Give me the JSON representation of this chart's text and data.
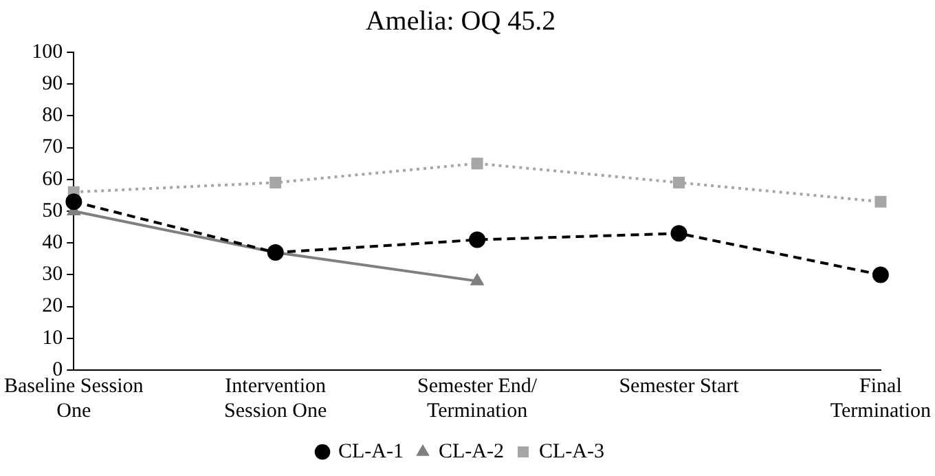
{
  "chart_data": {
    "type": "line",
    "title": "Amelia: OQ 45.2",
    "categories": [
      "Baseline Session One",
      "Intervention Session One",
      "Semester End/ Termination",
      "Semester Start",
      "Final Termination"
    ],
    "series": [
      {
        "name": "CL-A-1",
        "color": "#000000",
        "values": [
          53,
          37,
          41,
          43,
          30
        ],
        "marker": "circle",
        "line_style": "dashed"
      },
      {
        "name": "CL-A-2",
        "color": "#7f7f7f",
        "values": [
          50,
          37,
          28,
          null,
          null
        ],
        "marker": "triangle",
        "line_style": "solid"
      },
      {
        "name": "CL-A-3",
        "color": "#a6a6a6",
        "values": [
          56,
          59,
          65,
          59,
          53
        ],
        "marker": "square",
        "line_style": "dotted"
      }
    ],
    "ylim": [
      0,
      100
    ],
    "yticks": [
      0,
      10,
      20,
      30,
      40,
      50,
      60,
      70,
      80,
      90,
      100
    ],
    "grid": false,
    "legend": "bottom"
  }
}
